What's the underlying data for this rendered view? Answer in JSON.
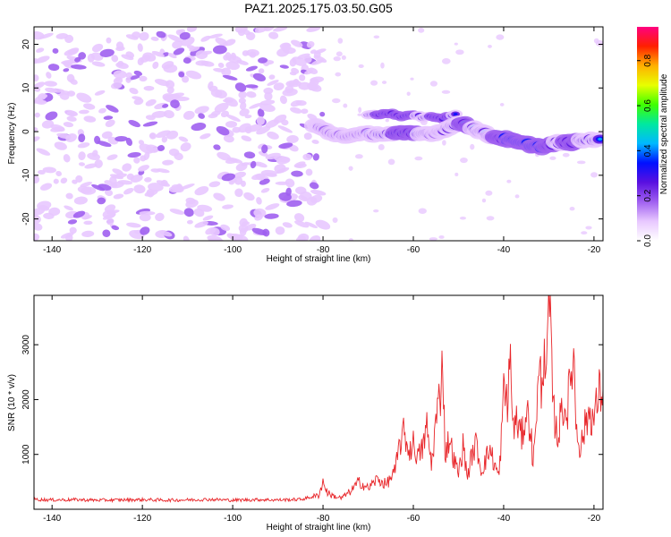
{
  "figure": {
    "title": "PAZ1.2025.175.03.50.G05"
  },
  "colors": {
    "snr_line": "#e8262a",
    "axis": "#000000",
    "spectrogram_scale": [
      "#ffffff",
      "#e8c8ff",
      "#a060f0",
      "#5a10e0",
      "#0010ff",
      "#00b8ff",
      "#00e8a0",
      "#40ff00",
      "#e8ff00",
      "#ffb000",
      "#ff2000",
      "#ff0080"
    ]
  },
  "chart_data": [
    {
      "type": "heatmap",
      "title": "PAZ1.2025.175.03.50.G05",
      "xlabel": "Height of straight line (km)",
      "ylabel": "Frequency (Hz)",
      "xlim": [
        -144,
        -18
      ],
      "ylim": [
        -25,
        24
      ],
      "xticks": [
        -140,
        -120,
        -100,
        -80,
        -60,
        -40,
        -20
      ],
      "yticks": [
        -20,
        -10,
        0,
        10,
        20
      ],
      "colorbar": {
        "label": "Normalized spectral amplitude",
        "range": [
          0,
          0.95
        ],
        "ticks": [
          "0.0",
          "0.2",
          "0.4",
          "0.6",
          "0.8"
        ]
      },
      "noise_region_x": [
        -144,
        -80
      ],
      "noise_amplitude_range": [
        0.05,
        0.2
      ],
      "signal_ridge": {
        "x": [
          -82,
          -78,
          -74,
          -70,
          -66,
          -62,
          -58,
          -55,
          -52,
          -49,
          -46,
          -43,
          -40,
          -37,
          -34,
          -31,
          -28,
          -25,
          -22,
          -18
        ],
        "frequency": [
          1.5,
          -0.5,
          -1.0,
          -0.5,
          -0.5,
          -0.5,
          -0.5,
          -0.3,
          1.0,
          2.0,
          0.5,
          -1.0,
          -1.5,
          -2.5,
          -3.0,
          -3.5,
          -2.5,
          -2.5,
          -2.0,
          -1.5
        ],
        "amplitude": [
          0.25,
          0.3,
          0.35,
          0.4,
          0.45,
          0.6,
          0.5,
          0.4,
          0.45,
          0.55,
          0.5,
          0.5,
          0.6,
          0.7,
          0.75,
          0.6,
          0.5,
          0.55,
          0.5,
          0.45
        ]
      },
      "secondary_ridge": {
        "x": [
          -70,
          -66,
          -62,
          -58,
          -54,
          -50
        ],
        "frequency": [
          3.5,
          4.5,
          3.5,
          3.5,
          3.0,
          4.0
        ],
        "amplitude": [
          0.3,
          0.35,
          0.35,
          0.3,
          0.35,
          0.3
        ]
      }
    },
    {
      "type": "line",
      "xlabel": "Height of straight line (km)",
      "ylabel": "SNR (10 * v/v)",
      "xlim": [
        -144,
        -18
      ],
      "ylim": [
        0,
        3900
      ],
      "xticks": [
        -140,
        -120,
        -100,
        -80,
        -60,
        -40,
        -20
      ],
      "yticks": [
        1000,
        2000,
        3000
      ],
      "series": [
        {
          "x": [
            -144,
            -140,
            -135,
            -130,
            -125,
            -120,
            -115,
            -110,
            -105,
            -100,
            -95,
            -90,
            -85,
            -81,
            -80,
            -79,
            -78,
            -76,
            -74,
            -72,
            -70,
            -68,
            -66,
            -64,
            -63,
            -62,
            -61,
            -60,
            -59,
            -58,
            -57,
            -56,
            -55,
            -54,
            -53.5,
            -53,
            -52,
            -51,
            -50,
            -49,
            -48,
            -47,
            -46,
            -45,
            -44,
            -43,
            -42,
            -41,
            -40,
            -39,
            -38.5,
            -38,
            -37,
            -36,
            -35,
            -34,
            -33.5,
            -33,
            -32,
            -31.5,
            -31,
            -30.5,
            -30,
            -29,
            -28,
            -27,
            -26,
            -25,
            -24.5,
            -24,
            -23,
            -22,
            -21,
            -20,
            -19,
            -18
          ],
          "y": [
            180,
            170,
            175,
            165,
            170,
            175,
            165,
            170,
            180,
            165,
            175,
            170,
            180,
            250,
            500,
            300,
            250,
            200,
            320,
            500,
            380,
            550,
            450,
            700,
            1200,
            1400,
            1050,
            1200,
            950,
            1100,
            1500,
            800,
            1600,
            2150,
            2900,
            1000,
            1300,
            900,
            650,
            1150,
            600,
            1000,
            1200,
            700,
            900,
            1100,
            800,
            600,
            2100,
            2000,
            2900,
            1500,
            1600,
            1300,
            1800,
            1500,
            700,
            1600,
            2500,
            2100,
            3250,
            2200,
            3900,
            1800,
            1300,
            1900,
            1750,
            2500,
            2900,
            1600,
            1100,
            1500,
            1800,
            1600,
            2100,
            2200
          ]
        }
      ]
    }
  ]
}
